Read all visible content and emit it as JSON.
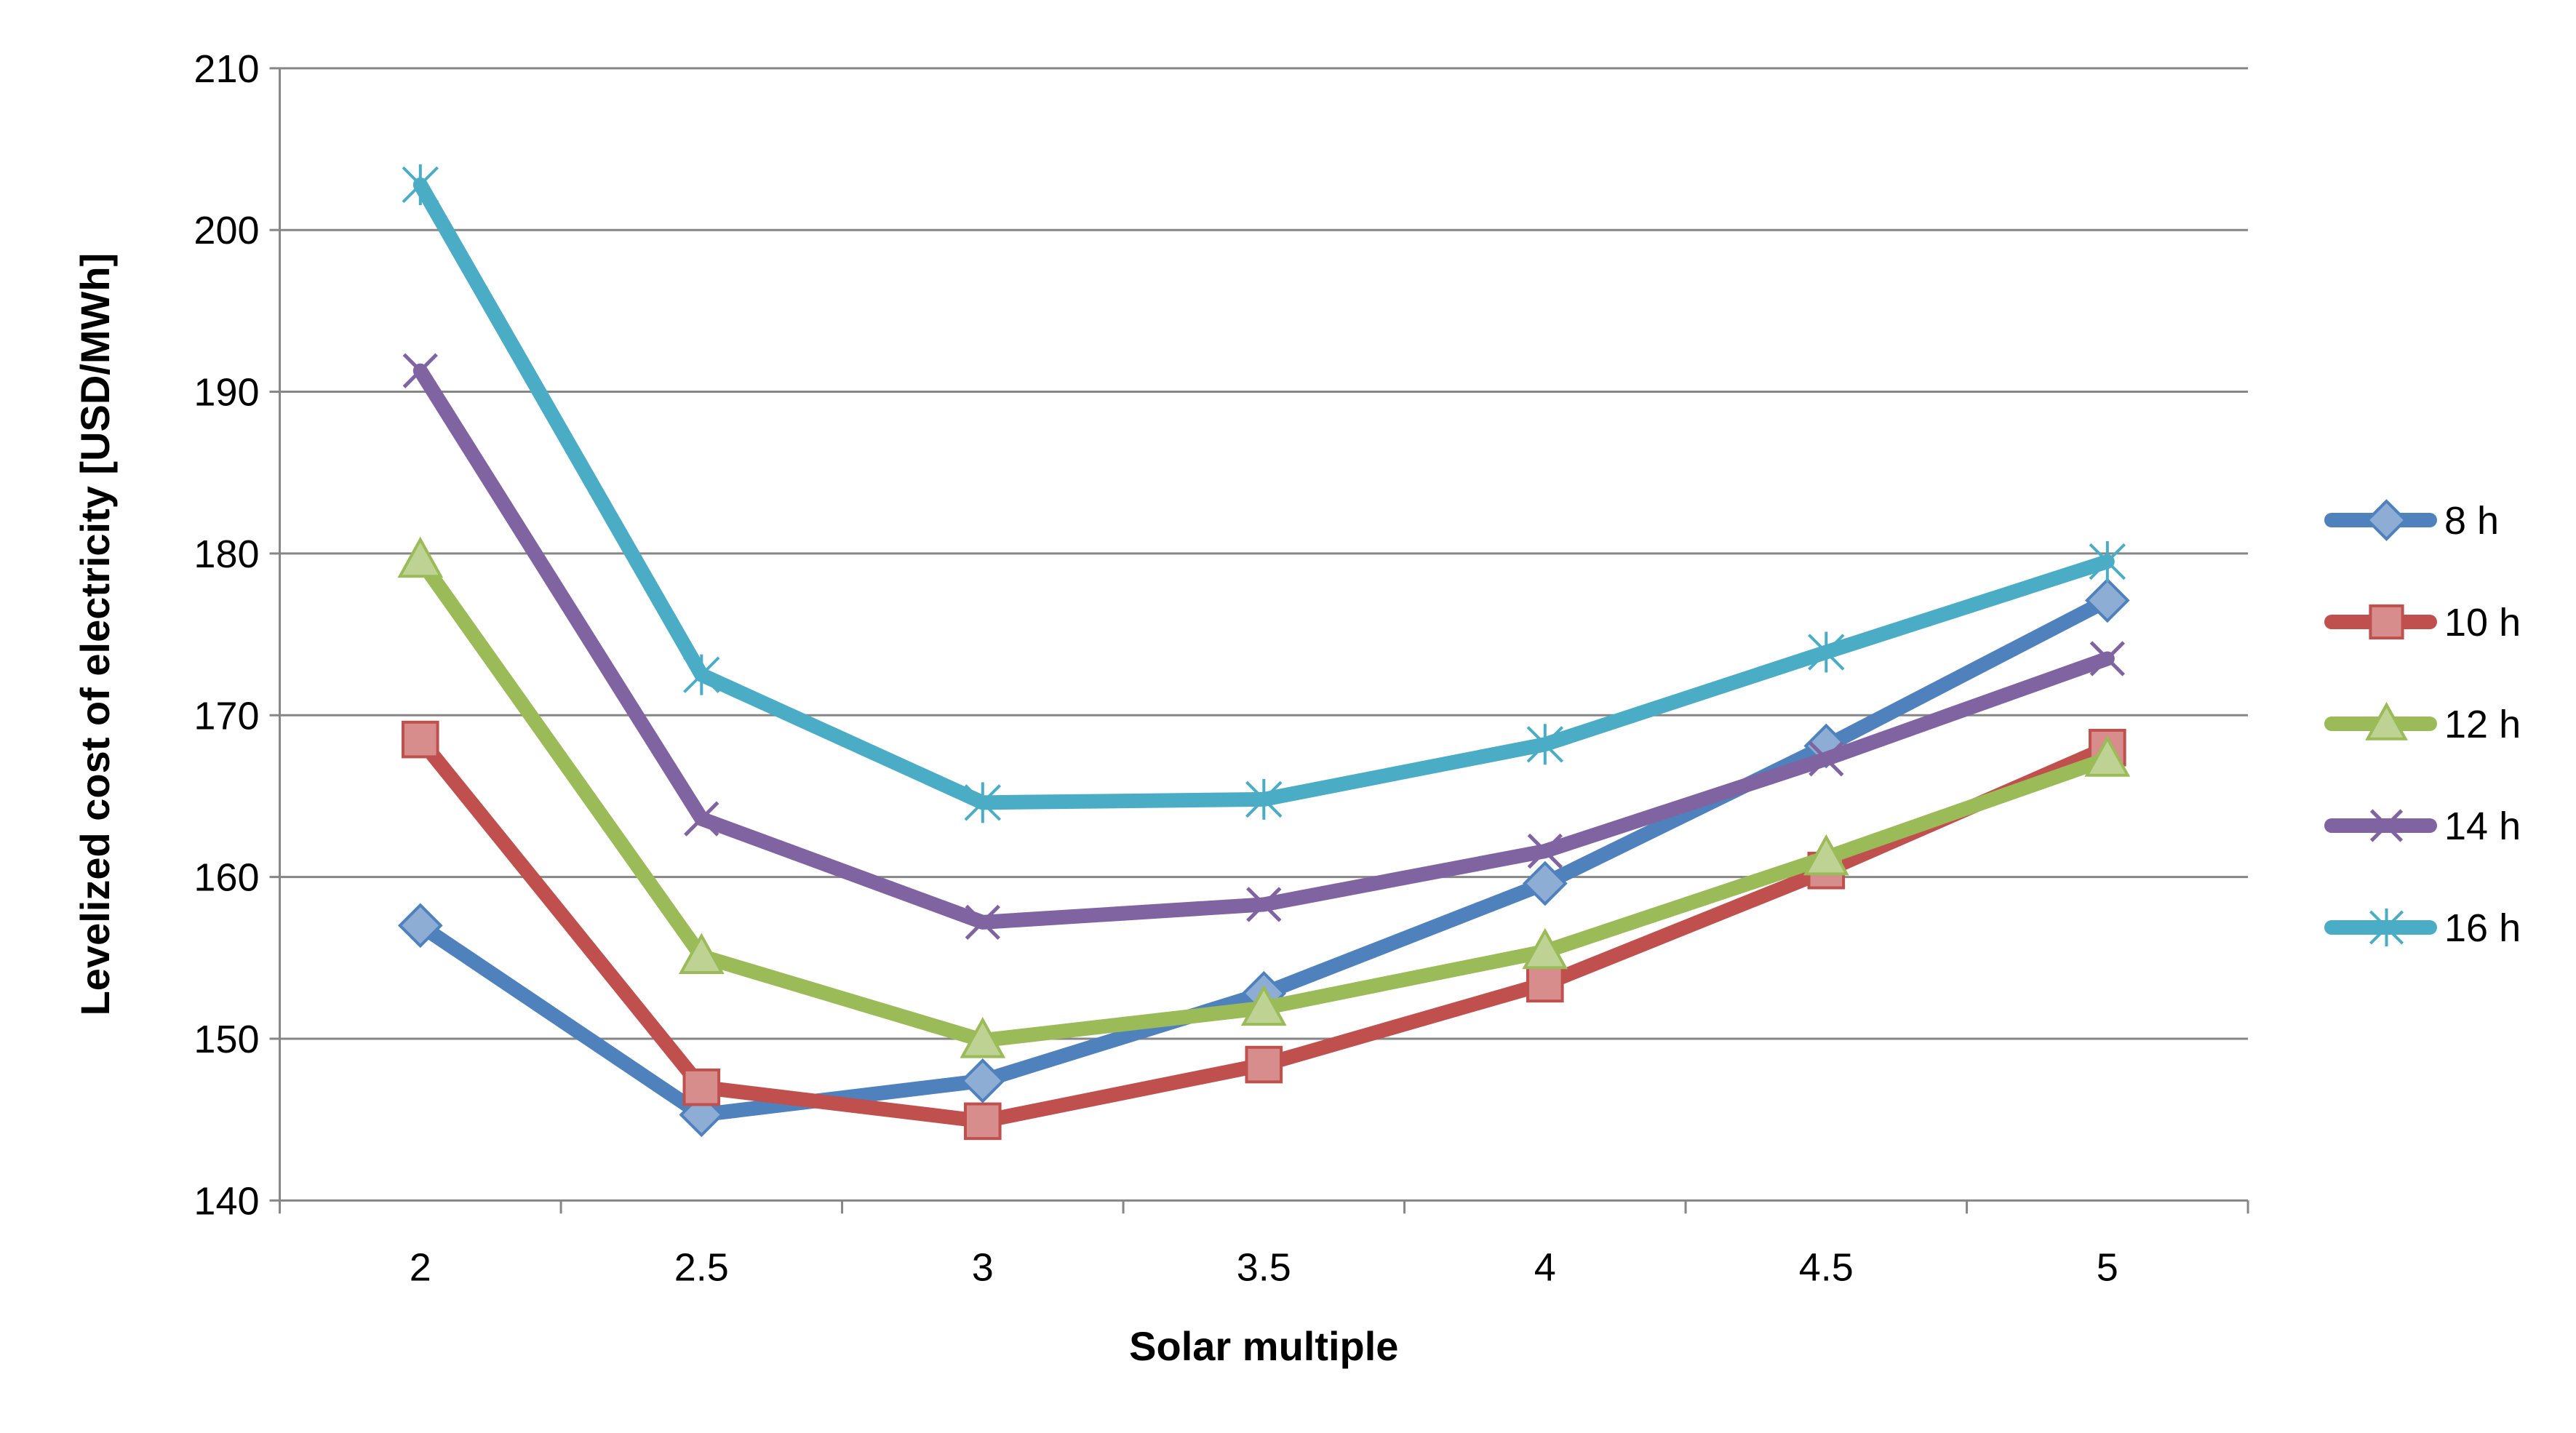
{
  "chart_data": {
    "type": "line",
    "title": "",
    "xlabel": "Solar multiple",
    "ylabel": "Levelized cost of electricity [USD/MWh]",
    "categories": [
      "2",
      "2.5",
      "3",
      "3.5",
      "4",
      "4.5",
      "5"
    ],
    "ylim": [
      140,
      210
    ],
    "yticks": [
      140,
      150,
      160,
      170,
      180,
      190,
      200,
      210
    ],
    "grid": true,
    "legend_position": "right",
    "series": [
      {
        "name": "8 h",
        "color": "#4F81BD",
        "marker": "diamond",
        "values": [
          157.0,
          145.3,
          147.4,
          152.8,
          159.6,
          168.1,
          177.1
        ]
      },
      {
        "name": "10 h",
        "color": "#C0504D",
        "marker": "square",
        "values": [
          168.5,
          147.0,
          144.9,
          148.4,
          153.4,
          160.4,
          168.0
        ]
      },
      {
        "name": "12 h",
        "color": "#9BBB59",
        "marker": "triangle",
        "values": [
          179.6,
          155.1,
          149.9,
          151.9,
          155.4,
          161.2,
          167.3
        ]
      },
      {
        "name": "14 h",
        "color": "#8064A2",
        "marker": "x",
        "values": [
          191.3,
          163.6,
          157.2,
          158.3,
          161.6,
          167.3,
          173.5
        ]
      },
      {
        "name": "16 h",
        "color": "#4BACC6",
        "marker": "star",
        "values": [
          202.8,
          172.5,
          164.6,
          164.8,
          168.2,
          173.9,
          179.5
        ]
      }
    ]
  }
}
